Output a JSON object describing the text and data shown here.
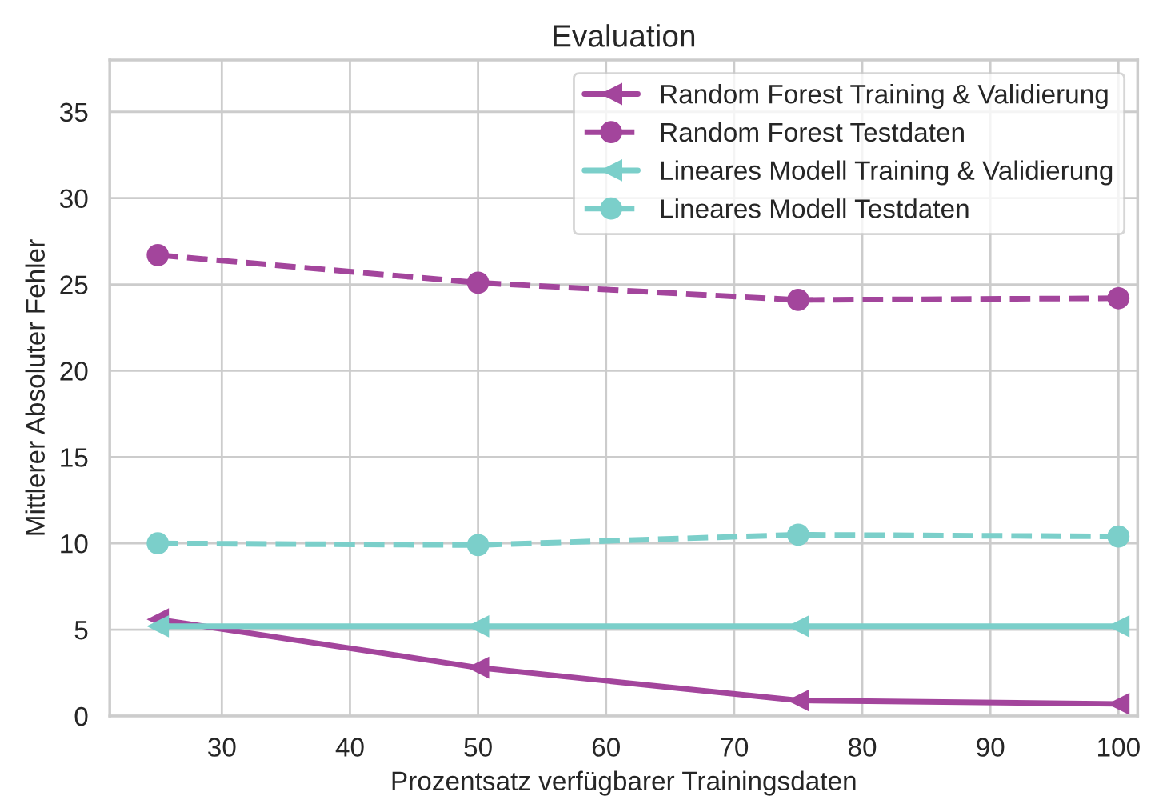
{
  "chart_data": {
    "type": "line",
    "title": "Evaluation",
    "xlabel": "Prozentsatz verfügbarer Trainingsdaten",
    "ylabel": "Mittlerer Absoluter Fehler",
    "x": [
      25,
      50,
      75,
      100
    ],
    "series": [
      {
        "name": "Random Forest Training & Validierung",
        "color": "#a3459c",
        "values": [
          5.6,
          2.8,
          0.9,
          0.7
        ],
        "marker": "triangle",
        "line_style": "solid"
      },
      {
        "name": "Random Forest Testdaten",
        "color": "#a3459c",
        "values": [
          26.7,
          25.1,
          24.1,
          24.2
        ],
        "marker": "circle",
        "line_style": "dashed"
      },
      {
        "name": "Lineares Modell Training & Validierung",
        "color": "#7bcfca",
        "values": [
          5.2,
          5.2,
          5.2,
          5.2
        ],
        "marker": "triangle",
        "line_style": "solid"
      },
      {
        "name": "Lineares Modell Testdaten",
        "color": "#7bcfca",
        "values": [
          10.0,
          9.9,
          10.5,
          10.4
        ],
        "marker": "circle",
        "line_style": "dashed"
      }
    ],
    "xlim": [
      21.25,
      101.5
    ],
    "xticks": [
      30,
      40,
      50,
      60,
      70,
      80,
      90,
      100
    ],
    "ylim": [
      0,
      38
    ],
    "yticks": [
      0,
      5,
      10,
      15,
      20,
      25,
      30,
      35
    ],
    "grid": true,
    "legend": "top right"
  }
}
